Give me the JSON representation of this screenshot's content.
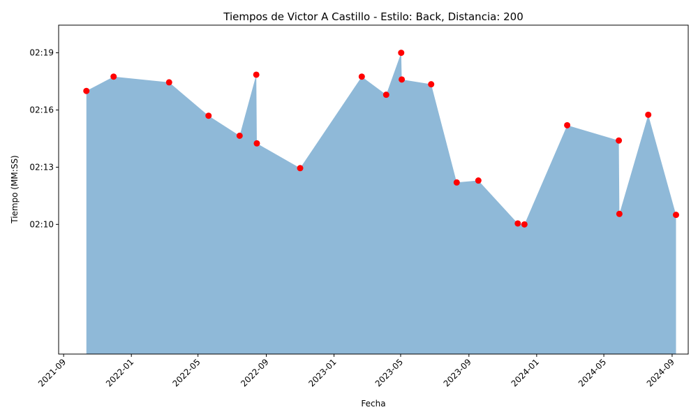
{
  "chart_data": {
    "type": "area",
    "title": "Tiempos de Victor A Castillo - Estilo: Back, Distancia: 200",
    "xlabel": "Fecha",
    "ylabel": "Tiempo (MM:SS)",
    "x_tick_labels": [
      "2021-09",
      "2022-01",
      "2022-05",
      "2022-09",
      "2023-01",
      "2023-05",
      "2023-09",
      "2024-01",
      "2024-05",
      "2024-09"
    ],
    "x_tick_dates": [
      "2021-09-01",
      "2022-01-01",
      "2022-05-01",
      "2022-09-01",
      "2023-01-01",
      "2023-05-01",
      "2023-09-01",
      "2024-01-01",
      "2024-05-01",
      "2024-09-01"
    ],
    "y_tick_labels": [
      "02:10",
      "02:13",
      "02:16",
      "02:19"
    ],
    "y_tick_seconds": [
      130,
      133,
      136,
      139
    ],
    "ylim_seconds": [
      123.2,
      140.45
    ],
    "xlim": [
      "2021-08-23",
      "2024-09-30"
    ],
    "grid": false,
    "fill_color": "#8fb9d8",
    "marker_color": "#ff0000",
    "series": [
      {
        "x": [
          "2021-10-12",
          "2021-11-30",
          "2022-03-10",
          "2022-05-20",
          "2022-07-15",
          "2022-08-14",
          "2022-08-15",
          "2022-11-01",
          "2023-02-20",
          "2023-04-05",
          "2023-05-02",
          "2023-05-03",
          "2023-06-25",
          "2023-08-10",
          "2023-09-18",
          "2023-11-28",
          "2023-12-10",
          "2024-02-25",
          "2024-05-28",
          "2024-05-29",
          "2024-07-20",
          "2024-09-08"
        ],
        "y_seconds": [
          137.0,
          137.75,
          137.45,
          135.7,
          134.65,
          137.85,
          134.25,
          132.95,
          137.75,
          136.8,
          139.0,
          137.6,
          137.35,
          132.2,
          132.3,
          130.05,
          130.0,
          135.2,
          134.4,
          130.55,
          135.75,
          130.5
        ]
      }
    ]
  }
}
